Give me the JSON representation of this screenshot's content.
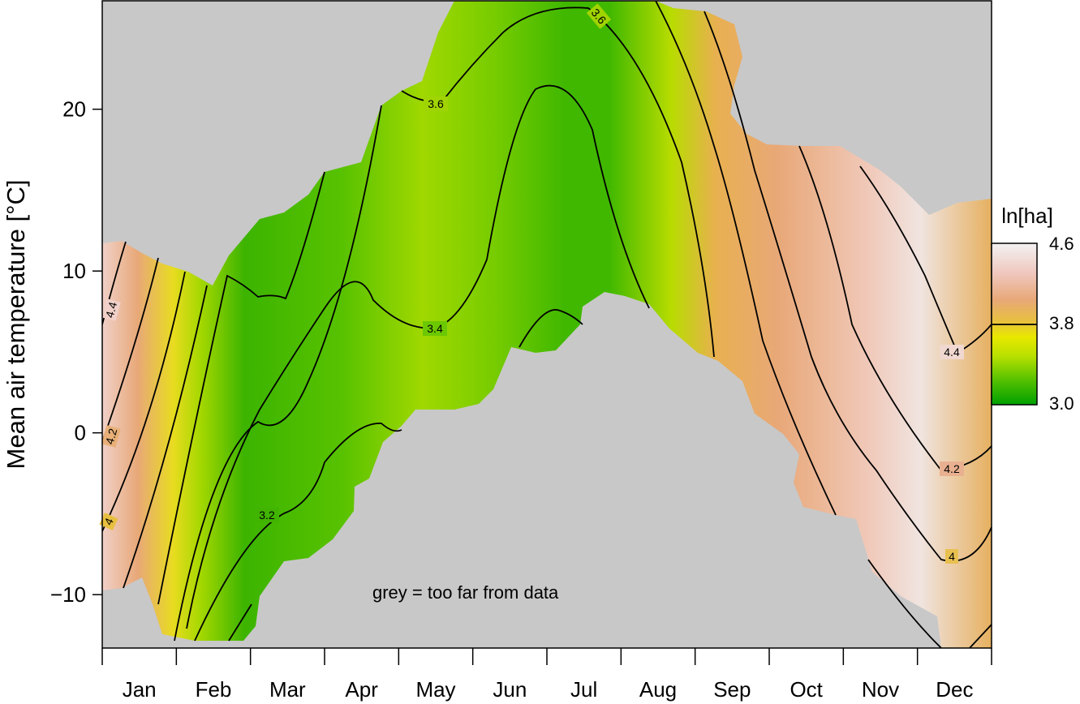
{
  "chart_data": {
    "type": "heatmap",
    "title": "",
    "xlabel": "",
    "ylabel": "Mean air temperature [°C]",
    "x_categories": [
      "Jan",
      "Feb",
      "Mar",
      "Apr",
      "May",
      "Jun",
      "Jul",
      "Aug",
      "Sep",
      "Oct",
      "Nov",
      "Dec"
    ],
    "ylim": [
      -13.3,
      26.7
    ],
    "y_ticks": [
      -10,
      0,
      10,
      20
    ],
    "y_tick_labels": [
      "−10",
      "0",
      "10",
      "20"
    ],
    "colorbar": {
      "title": "ln[ha]",
      "range": [
        3.0,
        4.6
      ],
      "tick_labels": [
        "4.6",
        "3.8",
        "3.0"
      ],
      "tick_values": [
        4.6,
        3.8,
        3.0
      ],
      "highlight_level": 3.8,
      "colors": [
        "#00a000",
        "#54c000",
        "#b8e000",
        "#e8e800",
        "#e8c040",
        "#e8a878",
        "#f0c8c0",
        "#f2f2f2"
      ]
    },
    "contour_labels": [
      "4.4",
      "4.2",
      "4",
      "3.6",
      "3.6",
      "3.4",
      "3.2",
      "4.4",
      "4.2",
      "4"
    ],
    "annotation": "grey = too far from data",
    "missing_color": "#c8c8c8"
  }
}
